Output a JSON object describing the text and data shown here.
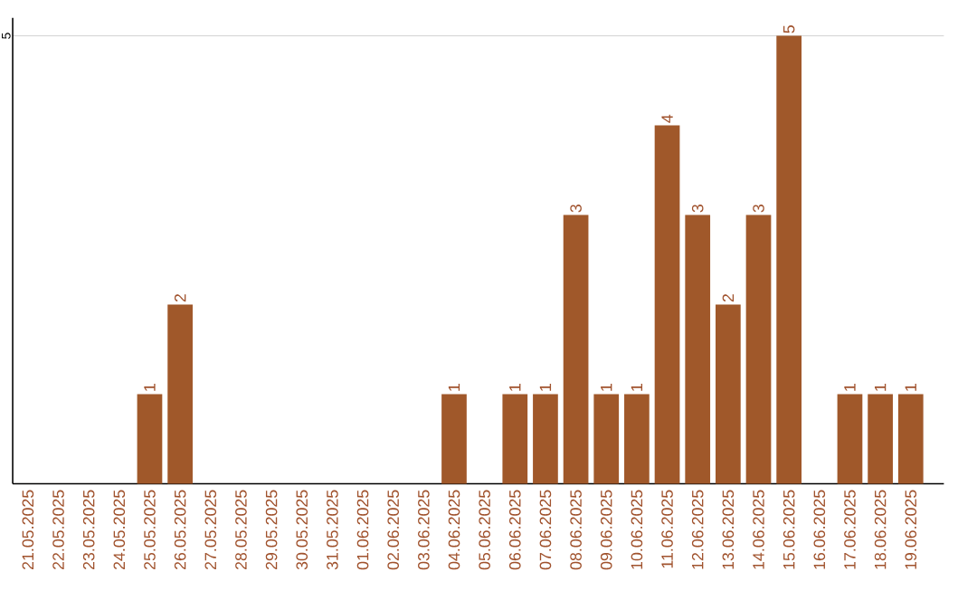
{
  "chart_data": {
    "type": "bar",
    "categories": [
      "21.05.2025",
      "22.05.2025",
      "23.05.2025",
      "24.05.2025",
      "25.05.2025",
      "26.05.2025",
      "27.05.2025",
      "28.05.2025",
      "29.05.2025",
      "30.05.2025",
      "31.05.2025",
      "01.06.2025",
      "02.06.2025",
      "03.06.2025",
      "04.06.2025",
      "05.06.2025",
      "06.06.2025",
      "07.06.2025",
      "08.06.2025",
      "09.06.2025",
      "10.06.2025",
      "11.06.2025",
      "12.06.2025",
      "13.06.2025",
      "14.06.2025",
      "15.06.2025",
      "16.06.2025",
      "17.06.2025",
      "18.06.2025",
      "19.06.2025"
    ],
    "values": [
      0,
      0,
      0,
      0,
      1,
      2,
      0,
      0,
      0,
      0,
      0,
      0,
      0,
      0,
      1,
      0,
      1,
      1,
      3,
      1,
      1,
      4,
      3,
      2,
      3,
      5,
      0,
      1,
      1,
      1
    ],
    "value_labels": [
      null,
      null,
      null,
      null,
      "1",
      "2",
      null,
      null,
      null,
      null,
      null,
      null,
      null,
      null,
      "1",
      null,
      "1",
      "1",
      "3",
      "1",
      "1",
      "4",
      "3",
      "2",
      "3",
      "5",
      null,
      "1",
      "1",
      "1"
    ],
    "color": "#a0582a",
    "ylim": [
      0,
      5.2
    ],
    "yticks": [
      5
    ],
    "grid": "y"
  }
}
